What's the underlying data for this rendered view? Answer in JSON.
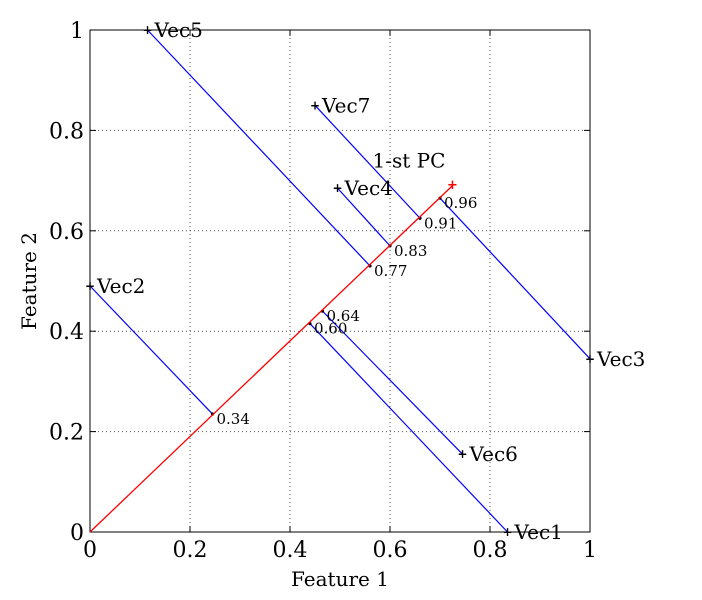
{
  "chart_data": {
    "type": "scatter",
    "title": "",
    "xlabel": "Feature 1",
    "ylabel": "Feature 2",
    "xlim": [
      0,
      1
    ],
    "ylim": [
      0,
      1
    ],
    "xticks": [
      "0",
      "0.2",
      "0.4",
      "0.6",
      "0.8",
      "1"
    ],
    "yticks": [
      "0",
      "0.2",
      "0.4",
      "0.6",
      "0.8",
      "1"
    ],
    "grid": true,
    "grid_style": "dotted",
    "principal_component": {
      "label": "1-st PC",
      "start": [
        0,
        0
      ],
      "end": [
        0.725,
        0.69
      ],
      "color": "#ff0000"
    },
    "points": [
      {
        "name": "Vec1",
        "x": 0.835,
        "y": 0.0,
        "projection": "0.60",
        "proj_x": 0.44,
        "proj_y": 0.415
      },
      {
        "name": "Vec2",
        "x": 0.0,
        "y": 0.49,
        "projection": "0.34",
        "proj_x": 0.245,
        "proj_y": 0.235
      },
      {
        "name": "Vec3",
        "x": 1.0,
        "y": 0.345,
        "projection": "0.96",
        "proj_x": 0.7,
        "proj_y": 0.665
      },
      {
        "name": "Vec4",
        "x": 0.495,
        "y": 0.685,
        "projection": "0.83",
        "proj_x": 0.6,
        "proj_y": 0.57
      },
      {
        "name": "Vec5",
        "x": 0.115,
        "y": 1.0,
        "projection": "0.77",
        "proj_x": 0.56,
        "proj_y": 0.53
      },
      {
        "name": "Vec6",
        "x": 0.745,
        "y": 0.155,
        "projection": "0.64",
        "proj_x": 0.465,
        "proj_y": 0.44
      },
      {
        "name": "Vec7",
        "x": 0.45,
        "y": 0.85,
        "projection": "0.91",
        "proj_x": 0.66,
        "proj_y": 0.625
      }
    ],
    "point_color": "#000000",
    "projection_line_color": "#0000ff"
  }
}
